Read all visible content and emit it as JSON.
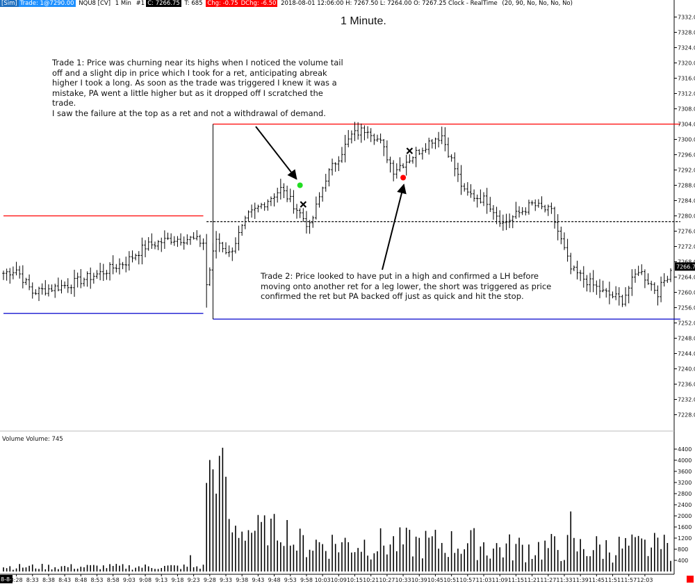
{
  "status_bar": {
    "instrument_tag": "[Sim]",
    "trade": "Trade: 1@7290.00",
    "symbol": "NQU8 [CV]",
    "interval": "1 Min",
    "chart_id": "#1",
    "close": "C: 7266.75",
    "ticks": "T: 685",
    "change": "Chg: -0.75",
    "dchange": "DChg: -6.50",
    "info": "2018-08-01 12:06:00 H: 7267.50 L: 7264.00 O: 7267.25 Clock - RealTime",
    "settings": "(20, 90, No, No, No, No)",
    "colors": {
      "tag_bg": "#1f6fbf",
      "trade_bg": "#1e90ff",
      "close_bg": "#000000",
      "change_bg": "#ff0000"
    }
  },
  "title": "1 Minute.",
  "annotations": {
    "trade1": "Trade 1:  Price was churning near its highs when I noticed the volume tail off and a slight dip in price which I took for a ret, anticipating abreak higher I took a long.  As soon as the trade was triggered I knew it was a mistake, PA went a little higher but as it dropped off I scratched the trade.\nI saw the failure at the top as a ret and not a withdrawal of demand.",
    "trade2": "Trade 2:  Price looked to have put in a high and confirmed a LH before moving onto another ret for a leg lower, the short was triggered as price confirmed the ret but PA backed off just as quick and hit the stop."
  },
  "volume_label": "Volume  Volume: 745",
  "date_label": "8-8-1",
  "chart_data": {
    "type": "candlestick",
    "x_labels": [
      "8:28",
      "8:33",
      "8:38",
      "8:43",
      "8:48",
      "8:53",
      "8:58",
      "9:03",
      "9:08",
      "9:13",
      "9:18",
      "9:23",
      "9:28",
      "9:33",
      "9:38",
      "9:43",
      "9:48",
      "9:53",
      "9:58",
      "10:03",
      "10:09",
      "10:15",
      "10:21",
      "10:27",
      "10:33",
      "10:39",
      "10:45",
      "10:51",
      "10:57",
      "11:03",
      "11:09",
      "11:15",
      "11:21",
      "11:27",
      "11:33",
      "11:39",
      "11:45",
      "11:51",
      "11:57",
      "12:03"
    ],
    "price_ticks": [
      "7332.00",
      "7328.00",
      "7324.00",
      "7320.00",
      "7316.00",
      "7312.00",
      "7308.00",
      "7304.00",
      "7300.00",
      "7296.00",
      "7292.00",
      "7288.00",
      "7284.00",
      "7280.00",
      "7276.00",
      "7272.00",
      "7268.00",
      "7264.00",
      "7260.00",
      "7256.00",
      "7252.00",
      "7248.00",
      "7244.00",
      "7240.00",
      "7236.00",
      "7232.00",
      "7228.00"
    ],
    "ylim": [
      7225,
      7335
    ],
    "last_price": "7266.75",
    "volume_ticks": [
      "4400",
      "4000",
      "3600",
      "3200",
      "2800",
      "2400",
      "2000",
      "1600",
      "1200",
      "800",
      "400"
    ],
    "volume_ylim": [
      0,
      4800
    ],
    "anchors": [
      {
        "i": 0,
        "p": 7265
      },
      {
        "i": 4,
        "p": 7266
      },
      {
        "i": 9,
        "p": 7260
      },
      {
        "i": 20,
        "p": 7262
      },
      {
        "i": 30,
        "p": 7265
      },
      {
        "i": 38,
        "p": 7268
      },
      {
        "i": 44,
        "p": 7272
      },
      {
        "i": 52,
        "p": 7274
      },
      {
        "i": 58,
        "p": 7274
      },
      {
        "i": 62,
        "p": 7273
      },
      {
        "i": 63,
        "p": 7262
      },
      {
        "i": 66,
        "p": 7274
      },
      {
        "i": 70,
        "p": 7270
      },
      {
        "i": 76,
        "p": 7280
      },
      {
        "i": 86,
        "p": 7287
      },
      {
        "i": 90,
        "p": 7283
      },
      {
        "i": 95,
        "p": 7277
      },
      {
        "i": 100,
        "p": 7290
      },
      {
        "i": 108,
        "p": 7301
      },
      {
        "i": 113,
        "p": 7303
      },
      {
        "i": 117,
        "p": 7299
      },
      {
        "i": 121,
        "p": 7292
      },
      {
        "i": 126,
        "p": 7295
      },
      {
        "i": 133,
        "p": 7300
      },
      {
        "i": 136,
        "p": 7301
      },
      {
        "i": 143,
        "p": 7286
      },
      {
        "i": 150,
        "p": 7284
      },
      {
        "i": 155,
        "p": 7278
      },
      {
        "i": 164,
        "p": 7283
      },
      {
        "i": 170,
        "p": 7281
      },
      {
        "i": 176,
        "p": 7266
      },
      {
        "i": 186,
        "p": 7260
      },
      {
        "i": 192,
        "p": 7258
      },
      {
        "i": 197,
        "p": 7266
      },
      {
        "i": 203,
        "p": 7260
      },
      {
        "i": 207,
        "p": 7266
      }
    ],
    "spike_bar": {
      "i": 63,
      "low": 7256
    },
    "levels": [
      {
        "price": 7280.0,
        "color": "#ff0000",
        "from": 0,
        "to": 62
      },
      {
        "price": 7254.5,
        "color": "#0000cc",
        "from": 0,
        "to": 62
      },
      {
        "price": 7304.0,
        "color": "#ff0000",
        "from": 65,
        "to": 210
      },
      {
        "price": 7253.0,
        "color": "#0000cc",
        "from": 65,
        "to": 210
      },
      {
        "price": 7278.5,
        "color": "#000000",
        "from": 63,
        "to": 210,
        "dashed": true
      }
    ],
    "markers": [
      {
        "type": "dot",
        "i": 92,
        "price": 7288.0,
        "color": "#22dd22"
      },
      {
        "type": "x",
        "i": 93,
        "price": 7283.0,
        "color": "#000000"
      },
      {
        "type": "dot",
        "i": 124,
        "price": 7290.0,
        "color": "#ff0000"
      },
      {
        "type": "x",
        "i": 126,
        "price": 7297.0,
        "color": "#000000"
      }
    ],
    "bars_count": 208
  }
}
